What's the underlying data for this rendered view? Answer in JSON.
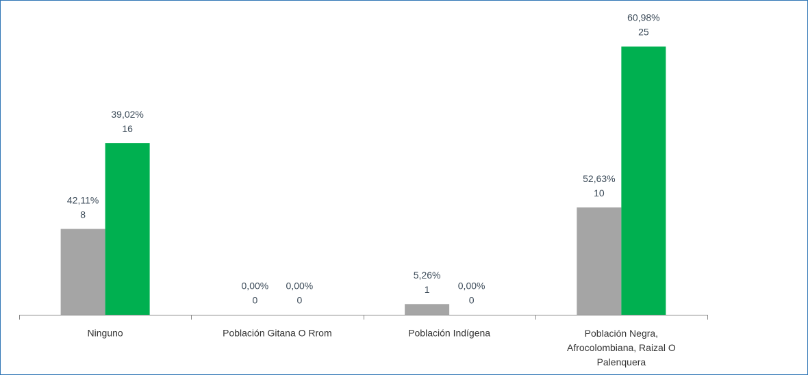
{
  "chart_data": {
    "type": "bar",
    "categories": [
      "Ninguno",
      "Población Gitana O Rrom",
      "Población Indígena",
      "Población Negra, Afrocolombiana, Raizal O Palenquera"
    ],
    "series": [
      {
        "color": "#a5a5a5",
        "values": [
          8,
          0,
          1,
          10
        ],
        "percent_labels": [
          "42,11%",
          "0,00%",
          "5,26%",
          "52,63%"
        ]
      },
      {
        "color": "#00b050",
        "values": [
          16,
          0,
          0,
          25
        ],
        "percent_labels": [
          "39,02%",
          "0,00%",
          "0,00%",
          "60,98%"
        ]
      }
    ],
    "ylim": [
      0,
      25
    ]
  }
}
